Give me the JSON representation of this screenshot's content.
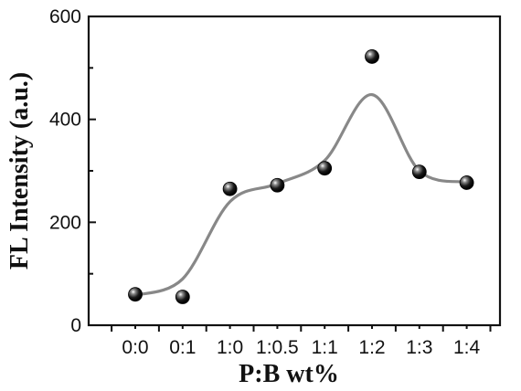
{
  "chart_data": {
    "type": "scatter",
    "xlabel": "P:B wt%",
    "ylabel": "FL Intensity (a.u.)",
    "categories": [
      "0:0",
      "0:1",
      "1:0",
      "1:0.5",
      "1:1",
      "1:2",
      "1:3",
      "1:4"
    ],
    "yticks": [
      0,
      200,
      400,
      600
    ],
    "ylim": [
      0,
      600
    ],
    "series": [
      {
        "marker": "sphere",
        "color": "#111111",
        "values": [
          60,
          55,
          265,
          272,
          305,
          522,
          298,
          277
        ]
      }
    ],
    "fit_curve": {
      "color": "#888888",
      "values": [
        58,
        90,
        240,
        275,
        320,
        448,
        300,
        278
      ]
    },
    "grid": false
  }
}
